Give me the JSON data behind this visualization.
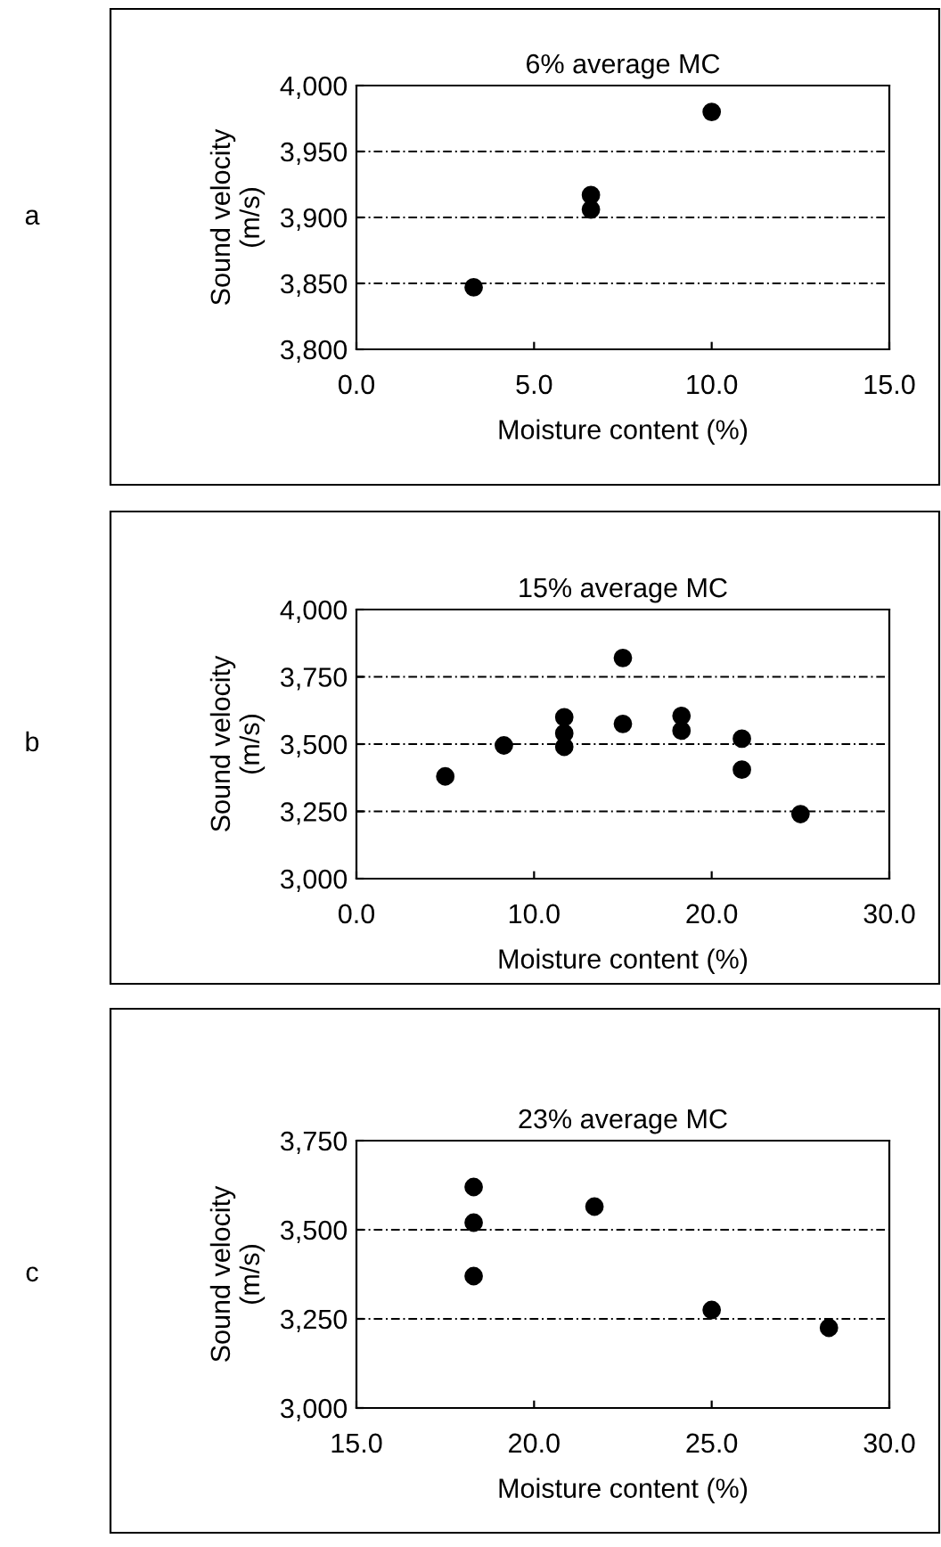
{
  "chart_data": [
    {
      "type": "scatter",
      "title": "6% average MC",
      "xlabel": "Moisture content (%)",
      "ylabel": "Sound velocity\n(m/s)",
      "annotations": [
        "a"
      ],
      "xlim": [
        0,
        15
      ],
      "ylim": [
        3800,
        4000
      ],
      "xticks": [
        {
          "value": 0,
          "label": "0.0"
        },
        {
          "value": 5,
          "label": "5.0"
        },
        {
          "value": 10,
          "label": "10.0"
        },
        {
          "value": 15,
          "label": "15.0"
        }
      ],
      "yticks": [
        {
          "value": 3800,
          "label": "3,800"
        },
        {
          "value": 3850,
          "label": "3,850"
        },
        {
          "value": 3900,
          "label": "3,900"
        },
        {
          "value": 3950,
          "label": "3,950"
        },
        {
          "value": 4000,
          "label": "4,000"
        }
      ],
      "grid": "y",
      "marker": "circle",
      "series": [
        {
          "color": "#000000",
          "x": [
            3.3,
            6.6,
            6.6,
            10.0
          ],
          "values": [
            3847,
            3917,
            3906,
            3980
          ]
        }
      ]
    },
    {
      "type": "scatter",
      "title": "15% average MC",
      "xlabel": "Moisture content (%)",
      "ylabel": "Sound velocity\n(m/s)",
      "annotations": [
        "b"
      ],
      "xlim": [
        0,
        30
      ],
      "ylim": [
        3000,
        4000
      ],
      "xticks": [
        {
          "value": 0,
          "label": "0.0"
        },
        {
          "value": 10,
          "label": "10.0"
        },
        {
          "value": 20,
          "label": "20.0"
        },
        {
          "value": 30,
          "label": "30.0"
        }
      ],
      "yticks": [
        {
          "value": 3000,
          "label": "3,000"
        },
        {
          "value": 3250,
          "label": "3,250"
        },
        {
          "value": 3500,
          "label": "3,500"
        },
        {
          "value": 3750,
          "label": "3,750"
        },
        {
          "value": 4000,
          "label": "4,000"
        }
      ],
      "grid": "y",
      "marker": "circle",
      "series": [
        {
          "color": "#000000",
          "x": [
            5.0,
            8.3,
            11.7,
            11.7,
            11.7,
            15.0,
            15.0,
            18.3,
            18.3,
            21.7,
            21.7,
            25.0
          ],
          "values": [
            3380,
            3495,
            3600,
            3540,
            3490,
            3820,
            3575,
            3605,
            3550,
            3520,
            3405,
            3240
          ]
        }
      ]
    },
    {
      "type": "scatter",
      "title": "23% average MC",
      "xlabel": "Moisture content (%)",
      "ylabel": "Sound velocity\n(m/s)",
      "annotations": [
        "c"
      ],
      "xlim": [
        15,
        30
      ],
      "ylim": [
        3000,
        3750
      ],
      "xticks": [
        {
          "value": 15,
          "label": "15.0"
        },
        {
          "value": 20,
          "label": "20.0"
        },
        {
          "value": 25,
          "label": "25.0"
        },
        {
          "value": 30,
          "label": "30.0"
        }
      ],
      "yticks": [
        {
          "value": 3000,
          "label": "3,000"
        },
        {
          "value": 3250,
          "label": "3,250"
        },
        {
          "value": 3500,
          "label": "3,500"
        },
        {
          "value": 3750,
          "label": "3,750"
        }
      ],
      "grid": "y",
      "marker": "circle",
      "series": [
        {
          "color": "#000000",
          "x": [
            18.3,
            18.3,
            18.3,
            21.7,
            25.0,
            28.3
          ],
          "values": [
            3620,
            3520,
            3370,
            3565,
            3275,
            3225
          ]
        }
      ]
    }
  ]
}
